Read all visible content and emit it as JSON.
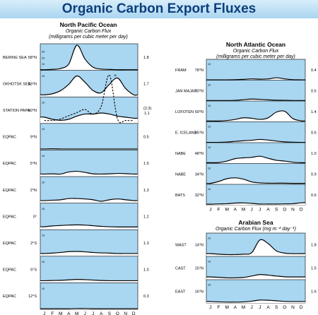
{
  "header": {
    "title": "Organic Carbon Export Fluxes"
  },
  "colors": {
    "panel_bg": "#a9d6f1",
    "curve_fill": "#ffffff",
    "line": "#000000",
    "title_color": "#0d3f7d"
  },
  "months": [
    "J",
    "F",
    "M",
    "A",
    "M",
    "J",
    "J",
    "A",
    "S",
    "O",
    "N",
    "D"
  ],
  "chart_data": [
    {
      "type": "area",
      "title": "North Pacific Ocean",
      "subtitle_lines": [
        "Organic Carbon Flux",
        "(milligrams per cubic meter per day)"
      ],
      "x": [
        "J",
        "F",
        "M",
        "A",
        "M",
        "J",
        "J",
        "A",
        "S",
        "O",
        "N",
        "D"
      ],
      "series": [
        {
          "name": "BERING SEA",
          "lat": "58°N",
          "value": "1.8",
          "ticks": [
            "40",
            "30",
            "20",
            "10"
          ],
          "ylim": [
            0,
            40
          ],
          "values": [
            1,
            1.5,
            3,
            10,
            40,
            18,
            5,
            2,
            1.5,
            1,
            1,
            1
          ]
        },
        {
          "name": "OKHOTSK SEA",
          "lat": "53°N",
          "value": "1.7",
          "ticks": [
            "10"
          ],
          "ylim": [
            0,
            12
          ],
          "values": [
            1,
            1.5,
            3,
            6,
            10,
            7,
            3,
            2,
            6,
            9,
            4,
            1
          ]
        },
        {
          "name": "STATION PAPA",
          "lat": "50°N",
          "value": "1.1",
          "value_extra": "(2.3)",
          "ticks": [
            "10"
          ],
          "ylim": [
            0,
            12
          ],
          "values": [
            3,
            2,
            1.5,
            2,
            3.5,
            4.5,
            4.5,
            5,
            4.5,
            3.5,
            3,
            2.5
          ]
        },
        {
          "name": "EQPAC",
          "lat": "9°N",
          "value": "0.5",
          "ticks": [
            "10"
          ],
          "ylim": [
            0,
            12
          ],
          "values": [
            0.5,
            0.6,
            0.5,
            0.5,
            0.5,
            0.5,
            0.5,
            0.5,
            0.5,
            0.5,
            0.5,
            0.5
          ]
        },
        {
          "name": "EQPAC",
          "lat": "5°N",
          "value": "1.5",
          "ticks": [
            "10"
          ],
          "ylim": [
            0,
            12
          ],
          "values": [
            1.2,
            1.3,
            1.2,
            2.2,
            2.5,
            2,
            1.3,
            1.2,
            1.3,
            1.5,
            1.4,
            1.2
          ]
        },
        {
          "name": "EQPAC",
          "lat": "2°N",
          "value": "1.3",
          "ticks": [
            "10"
          ],
          "ylim": [
            0,
            12
          ],
          "values": [
            1.2,
            1.4,
            1.6,
            2.2,
            2.2,
            2,
            1.6,
            0.9,
            1.6,
            2,
            1.6,
            1.2
          ]
        },
        {
          "name": "EQPAC",
          "lat": "0°",
          "value": "1.2",
          "ticks": [
            "10"
          ],
          "ylim": [
            0,
            12
          ],
          "values": [
            1.4,
            1.8,
            2,
            2.2,
            2.3,
            2.2,
            1.9,
            1.6,
            1.4,
            1.3,
            1.3,
            1.3
          ]
        },
        {
          "name": "EQPAC",
          "lat": "2°S",
          "value": "1.3",
          "ticks": [
            "10"
          ],
          "ylim": [
            0,
            12
          ],
          "values": [
            1.3,
            1.5,
            1.8,
            2.2,
            2.3,
            2.1,
            1.8,
            1.6,
            1.5,
            1.3,
            1.3,
            1.3
          ]
        },
        {
          "name": "EQPAC",
          "lat": "5°S",
          "value": "1.0",
          "ticks": [
            "10"
          ],
          "ylim": [
            0,
            12
          ],
          "values": [
            1,
            1.1,
            1.2,
            1.4,
            1.6,
            1.5,
            1.3,
            1.1,
            1,
            1,
            1,
            1
          ]
        },
        {
          "name": "EQPAC",
          "lat": "12°S",
          "value": "0.3",
          "ticks": [
            "10"
          ],
          "ylim": [
            0,
            12
          ],
          "values": [
            0.3,
            0.3,
            0.3,
            0.3,
            0.4,
            0.4,
            0.3,
            0.3,
            0.3,
            0.3,
            0.3,
            0.3
          ]
        }
      ],
      "overlay": {
        "type": "dashed-line",
        "label": "30",
        "values": [
          1,
          1,
          2,
          4,
          6,
          8,
          5,
          10,
          30,
          2,
          1,
          1
        ]
      }
    },
    {
      "type": "area",
      "title": "North Atlantic Ocean",
      "subtitle_lines": [
        "Organic Carbon Flux",
        "(milligrams per cubic meter per day)"
      ],
      "x": [
        "J",
        "F",
        "M",
        "A",
        "M",
        "J",
        "J",
        "A",
        "S",
        "O",
        "N",
        "D"
      ],
      "series": [
        {
          "name": "FRAM",
          "lat": "78°N",
          "value": "0.4",
          "ticks": [
            "10"
          ],
          "ylim": [
            0,
            12
          ],
          "values": [
            0.2,
            0.2,
            0.2,
            0.3,
            0.5,
            0.8,
            0.6,
            0.8,
            1.5,
            0.8,
            0.3,
            0.2
          ]
        },
        {
          "name": "JAN MAJAN",
          "lat": "70°N",
          "value": "0.5",
          "ticks": [
            "10"
          ],
          "ylim": [
            0,
            12
          ],
          "values": [
            0.3,
            0.3,
            0.3,
            0.4,
            0.8,
            1.2,
            1,
            0.7,
            0.5,
            0.4,
            0.3,
            0.3
          ]
        },
        {
          "name": "LOFOTEN",
          "lat": "69°N",
          "value": "1.4",
          "ticks": [
            "10"
          ],
          "ylim": [
            0,
            12
          ],
          "values": [
            0.5,
            0.5,
            0.8,
            1.5,
            2.5,
            2.2,
            1.5,
            2.5,
            6,
            6.5,
            2,
            0.6
          ]
        },
        {
          "name": "E. ICELAND",
          "lat": "65°N",
          "value": "0.6",
          "ticks": [
            "10"
          ],
          "ylim": [
            0,
            12
          ],
          "values": [
            0.2,
            0.2,
            0.4,
            0.8,
            1.2,
            1.5,
            2,
            1.6,
            1,
            0.5,
            0.3,
            0.2
          ]
        },
        {
          "name": "NABE",
          "lat": "48°N",
          "value": "1.0",
          "ticks": [
            "10"
          ],
          "ylim": [
            0,
            12
          ],
          "values": [
            0.5,
            0.6,
            1.5,
            3,
            3.5,
            3.8,
            4.5,
            3.2,
            2,
            1.5,
            0.8,
            0.5
          ]
        },
        {
          "name": "NABE",
          "lat": "34°N",
          "value": "0.9",
          "ticks": [
            "10"
          ],
          "ylim": [
            0,
            12
          ],
          "values": [
            0.6,
            1.8,
            3.5,
            4,
            3.2,
            1.5,
            0.9,
            0.7,
            0.7,
            0.7,
            0.6,
            0.6
          ]
        },
        {
          "name": "BATS",
          "lat": "32°N",
          "value": "0.6",
          "ticks": [
            "10"
          ],
          "ylim": [
            0,
            12
          ],
          "values": [
            0.6,
            0.8,
            0.9,
            1.3,
            1.4,
            1.1,
            0.7,
            0.7,
            0.7,
            0.8,
            0.9,
            1.5
          ]
        }
      ]
    },
    {
      "type": "area",
      "title": "Arabian Sea",
      "subtitle_lines": [
        "Organic Carbon Flux (mg m⁻² day⁻¹)"
      ],
      "x": [
        "J",
        "F",
        "M",
        "A",
        "M",
        "J",
        "J",
        "A",
        "S",
        "O",
        "N",
        "D"
      ],
      "series": [
        {
          "name": "WAST",
          "lat": "14°N",
          "value": "1.8",
          "ticks": [
            "10"
          ],
          "ylim": [
            0,
            12
          ],
          "values": [
            1.5,
            1.2,
            1,
            1,
            1.2,
            2,
            9,
            7,
            3,
            1.8,
            1.5,
            1.5
          ]
        },
        {
          "name": "CAST",
          "lat": "15°N",
          "value": "1.5",
          "ticks": [
            "10"
          ],
          "ylim": [
            0,
            12
          ],
          "values": [
            1.5,
            1.3,
            1,
            1,
            1.2,
            2,
            2.8,
            2.5,
            2,
            1.6,
            1.5,
            1.5
          ]
        },
        {
          "name": "EAST",
          "lat": "16°N",
          "value": "1.6",
          "ticks": [
            "10"
          ],
          "ylim": [
            0,
            12
          ],
          "values": [
            0.8,
            0.6,
            0.5,
            0.5,
            0.6,
            1,
            1.6,
            1.5,
            1.2,
            0.9,
            0.8,
            0.8
          ]
        }
      ]
    }
  ]
}
